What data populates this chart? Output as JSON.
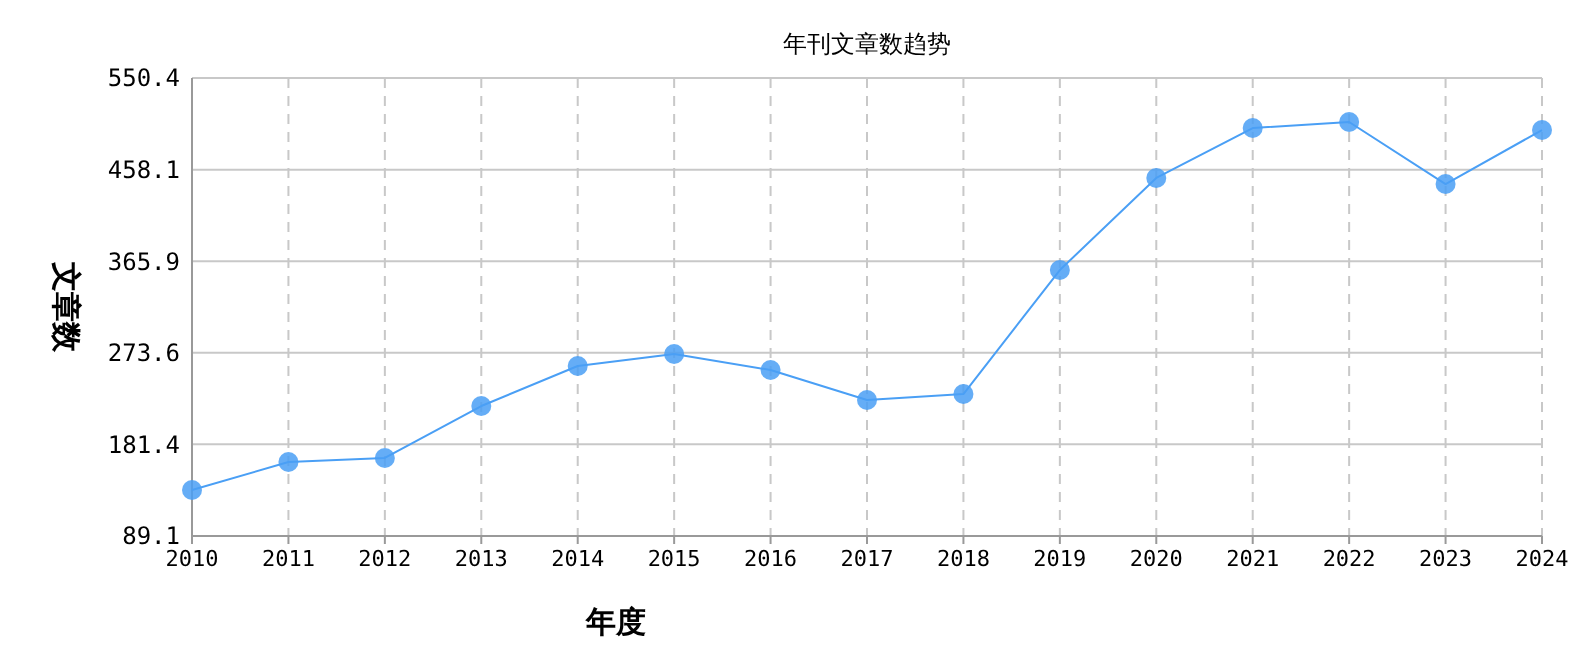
{
  "chart_data": {
    "type": "line",
    "title": "年刊文章数趋势",
    "xlabel": "年度",
    "ylabel": "文章数",
    "categories": [
      "2010",
      "2011",
      "2012",
      "2013",
      "2014",
      "2015",
      "2016",
      "2017",
      "2018",
      "2019",
      "2020",
      "2021",
      "2022",
      "2023",
      "2024"
    ],
    "series": [
      {
        "color": "#4a9ff5",
        "values": [
          135.4,
          163.6,
          167.7,
          220.0,
          260.3,
          272.4,
          256.3,
          226.1,
          232.1,
          357.0,
          449.7,
          500.0,
          506.1,
          443.6,
          498.0
        ]
      }
    ],
    "ylim": [
      89.1,
      550.4
    ],
    "yticks": [
      89.1,
      181.4,
      273.6,
      365.9,
      458.1,
      550.4
    ],
    "grid": true,
    "marker": "circle",
    "line_style": "solid"
  }
}
